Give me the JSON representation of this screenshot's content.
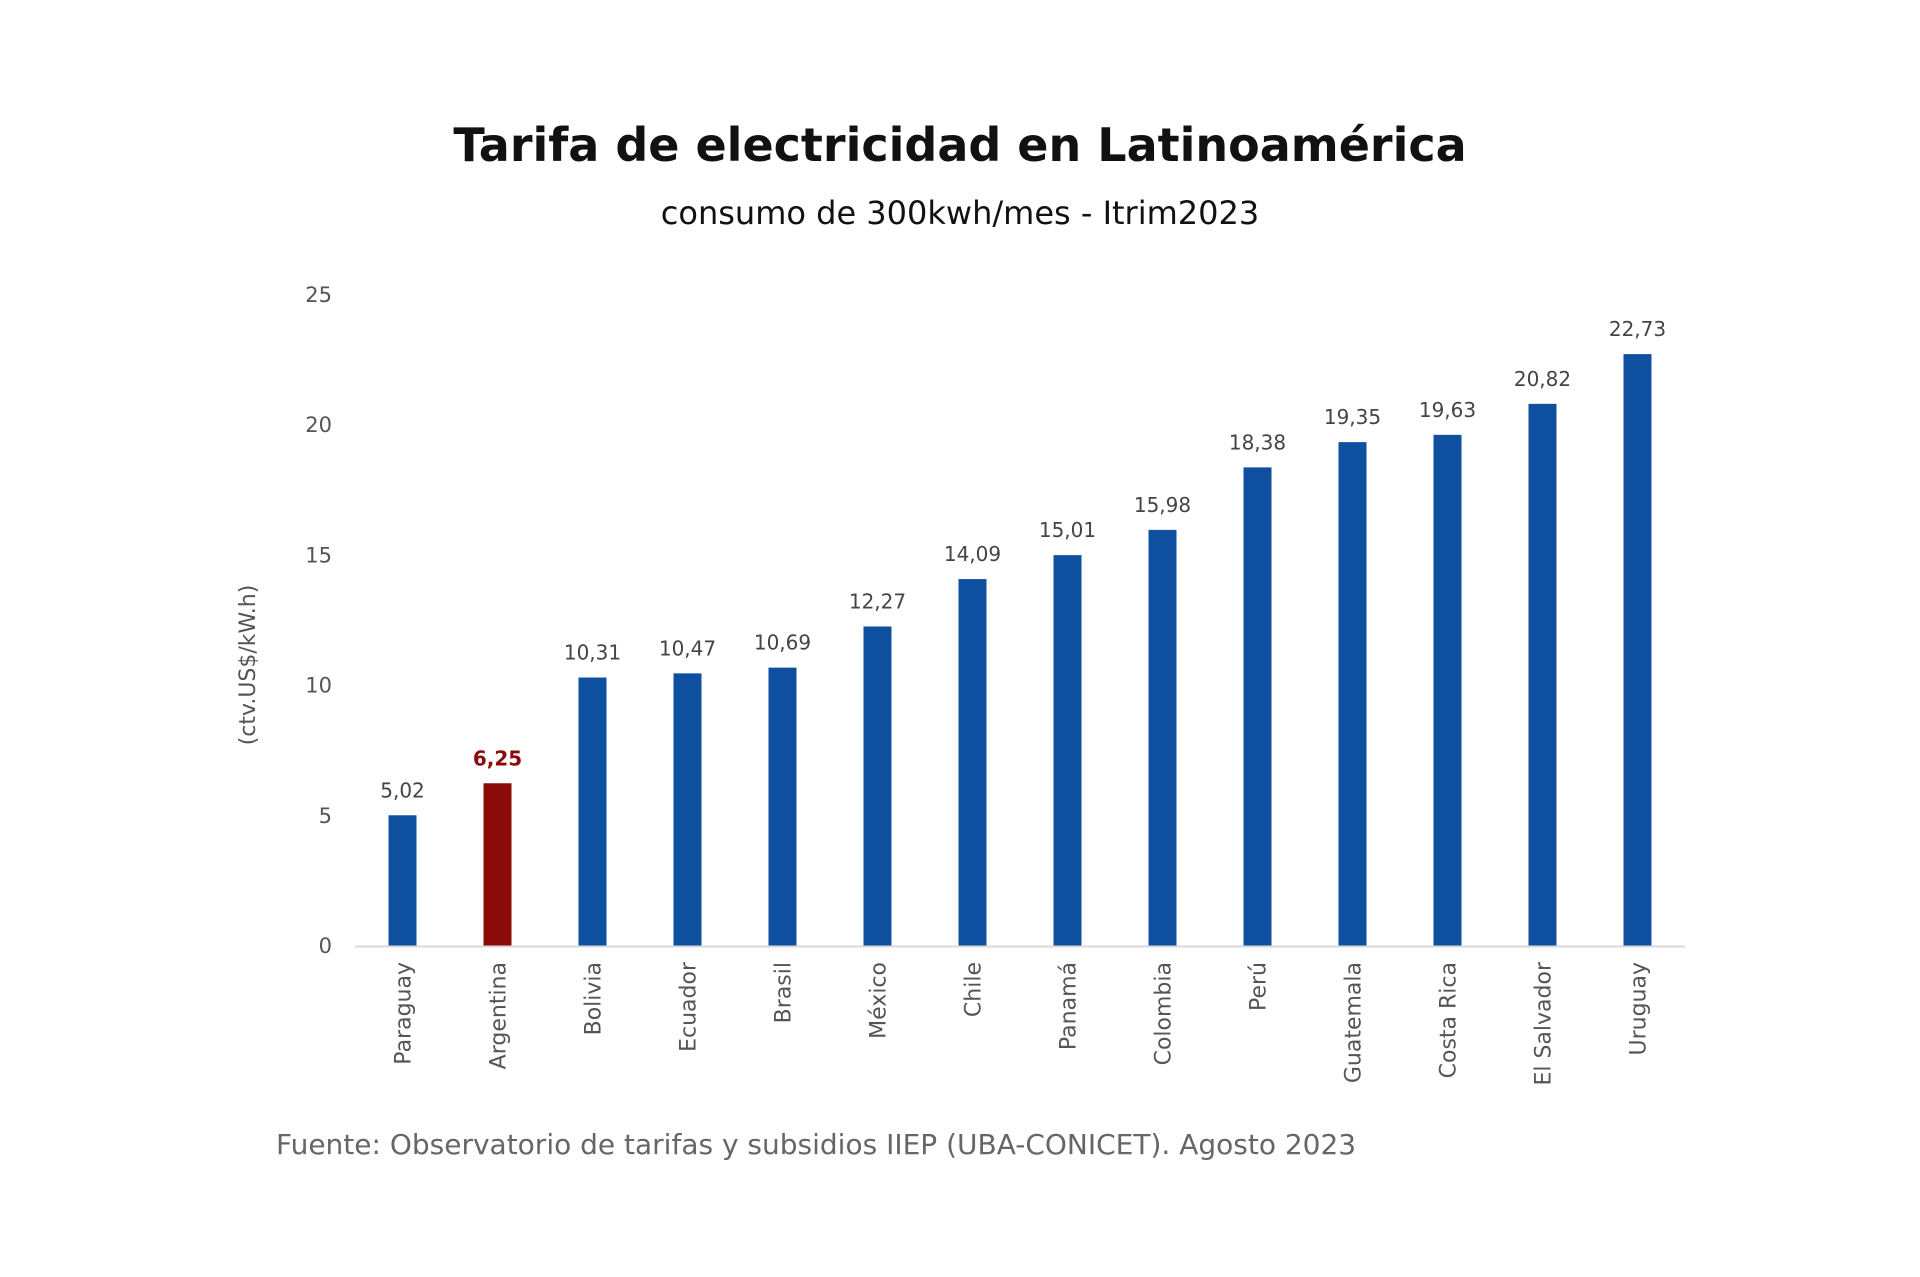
{
  "chart_data": {
    "type": "bar",
    "title": "Tarifa de electricidad en Latinoamérica",
    "subtitle": "consumo de 300kwh/mes - Itrim2023",
    "ylabel": "(ctv.US$/kW.h)",
    "ylim": [
      0,
      25
    ],
    "yticks": [
      0,
      5,
      10,
      15,
      20,
      25
    ],
    "grid": false,
    "legend": "none",
    "categories": [
      "Paraguay",
      "Argentina",
      "Bolivia",
      "Ecuador",
      "Brasil",
      "México",
      "Chile",
      "Panamá",
      "Colombia",
      "Perú",
      "Guatemala",
      "Costa Rica",
      "El Salvador",
      "Uruguay"
    ],
    "values": [
      5.02,
      6.25,
      10.31,
      10.47,
      10.69,
      12.27,
      14.09,
      15.01,
      15.98,
      18.38,
      19.35,
      19.63,
      20.82,
      22.73
    ],
    "value_labels": [
      "5,02",
      "6,25",
      "10,31",
      "10,47",
      "10,69",
      "12,27",
      "14,09",
      "15,01",
      "15,98",
      "18,38",
      "19,35",
      "19,63",
      "20,82",
      "22,73"
    ],
    "highlight_category": "Argentina",
    "colors": {
      "bar": "#0F4FA0",
      "highlight": "#8B0A0A",
      "highlight_label": "#8B0A0A",
      "axis": "#D9D9D9"
    }
  },
  "source": "Fuente: Observatorio de tarifas y subsidios IIEP (UBA-CONICET). Agosto 2023"
}
